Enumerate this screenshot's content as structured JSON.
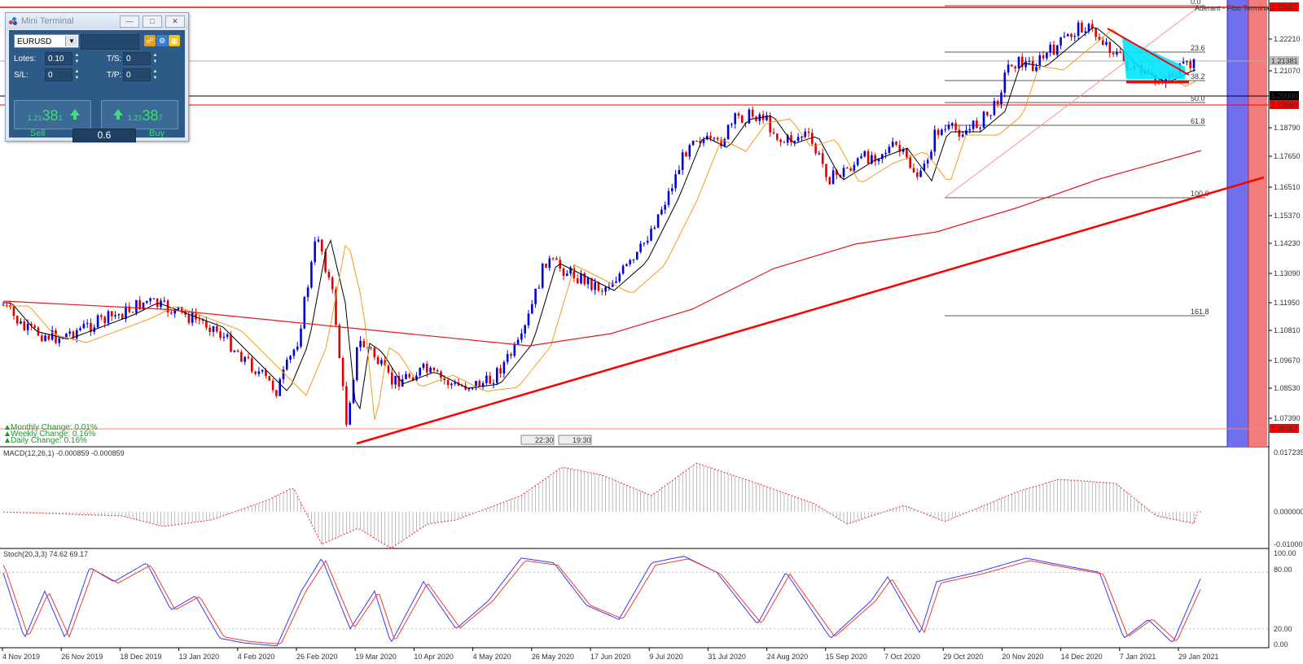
{
  "mini_terminal": {
    "title": "Mini Terminal",
    "symbol": "EURUSD",
    "lots_label": "Lotes:",
    "lots_value": "0.10",
    "ts_label": "T/S:",
    "ts_value": "0",
    "sl_label": "S/L:",
    "sl_value": "0",
    "tp_label": "T/P:",
    "tp_value": "0",
    "sell": {
      "pre": "1.21",
      "big": "38",
      "small": "1",
      "label": "Sell"
    },
    "buy": {
      "pre": "1.21",
      "big": "38",
      "small": "7",
      "label": "Buy"
    },
    "volume": "0.6"
  },
  "top_right_label": "Aderant - Fibo Terminal",
  "info_panel": {
    "monthly": "Monthly Change: 0.01%",
    "weekly": "Weekly Change: 0.16%",
    "daily": "Daily Change: 0.16%"
  },
  "price_axis_labels": [
    "1.22210",
    "1.21070",
    "1.18790",
    "1.17650",
    "1.16510",
    "1.15370",
    "1.14230",
    "1.13090",
    "1.11950",
    "1.10810",
    "1.09670",
    "1.08530",
    "1.07390"
  ],
  "price_badges": [
    {
      "text": "1.23501",
      "bg": "#ff0000",
      "fg": "#ffffff"
    },
    {
      "text": "1.21381",
      "bg": "#bfbfbf",
      "fg": "#ffffff"
    },
    {
      "text": "1.20000",
      "bg": "#000000",
      "fg": "#ffffff"
    },
    {
      "text": "1.19650",
      "bg": "#ff0000",
      "fg": "#ffffff"
    },
    {
      "text": "1.06962",
      "bg": "#ff0000",
      "fg": "#ffffff"
    }
  ],
  "fib_labels": [
    "0.0",
    "23.6",
    "38.2",
    "50.0",
    "61.8",
    "100.0",
    "161.8"
  ],
  "date_labels": [
    "4 Nov 2019",
    "26 Nov 2019",
    "18 Dec 2019",
    "13 Jan 2020",
    "4 Feb 2020",
    "26 Feb 2020",
    "19 Mar 2020",
    "10 Apr 2020",
    "4 May 2020",
    "26 May 2020",
    "17 Jun 2020",
    "9 Jul 2020",
    "31 Jul 2020",
    "24 Aug 2020",
    "15 Sep 2020",
    "7 Oct 2020",
    "29 Oct 2020",
    "20 Nov 2020",
    "14 Dec 2020",
    "7 Jan 2021",
    "29 Jan 2021"
  ],
  "time_markers": [
    "22:30",
    "19:30"
  ],
  "macd": {
    "title": "MACD(12,26,1) -0.000859 -0.000859",
    "axis": [
      "0.017235",
      "0.000000",
      "-0.010002"
    ]
  },
  "stoch": {
    "title": "Stoch(20,3,3) 74.62 69.17",
    "axis": [
      "100.00",
      "80.00",
      "20.00",
      "0.00"
    ]
  },
  "colors": {
    "bull": "#0000e0",
    "bear": "#e00000",
    "sma_fast": "#000000",
    "sma_mid": "#f39c1f",
    "sma_slow": "#e21b1b",
    "trend": "#ff0000",
    "rect": "#00e5ff",
    "band_blue": "#6f6ff0",
    "band_red": "#f27c7c"
  }
}
